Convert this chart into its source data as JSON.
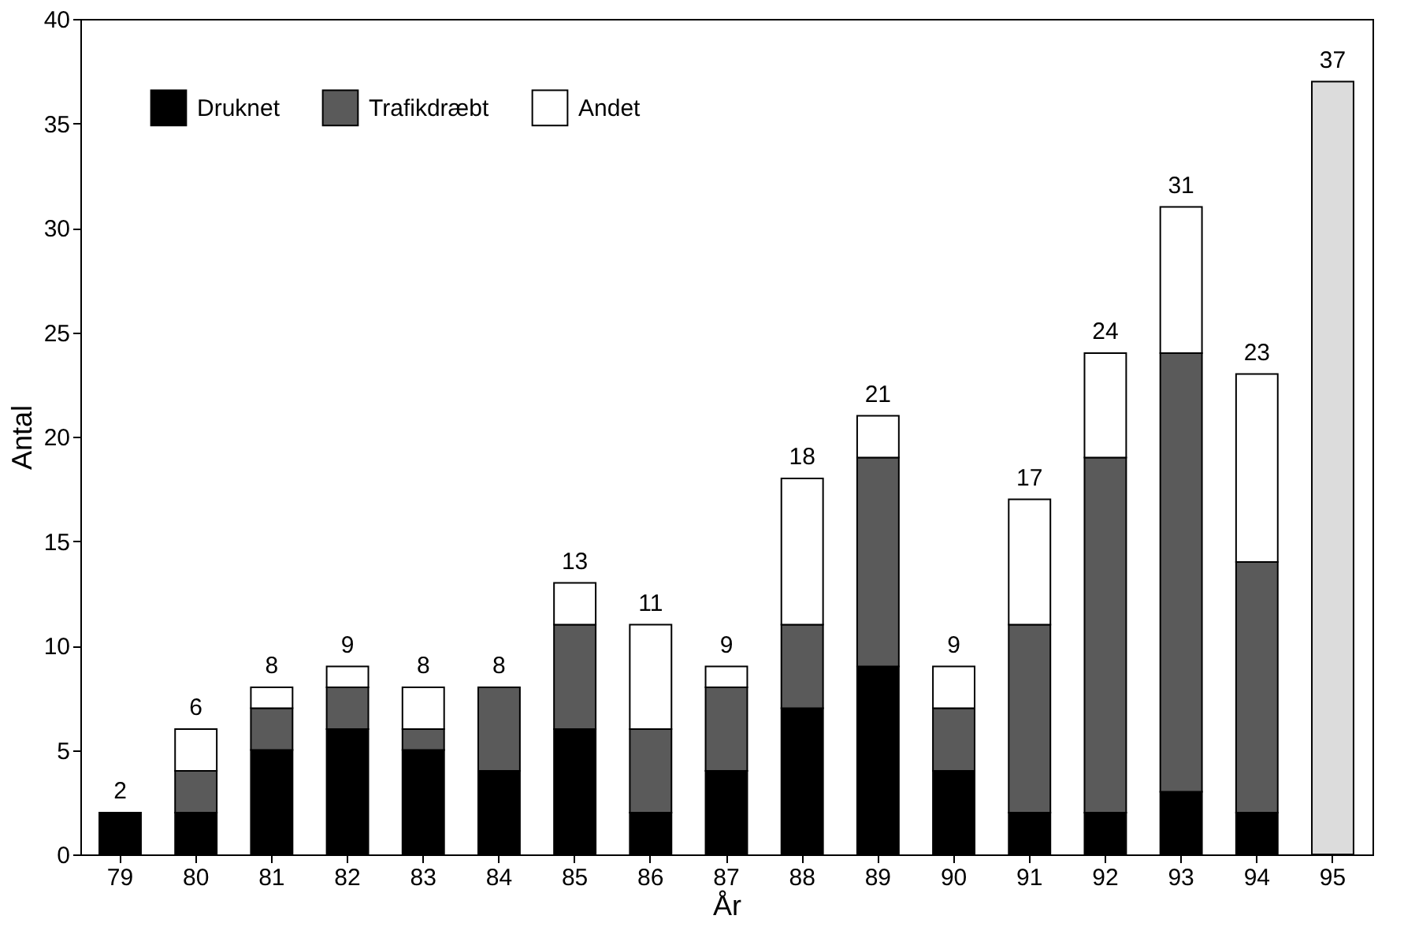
{
  "chart_data": {
    "type": "bar",
    "stacked": true,
    "xlabel": "År",
    "ylabel": "Antal",
    "categories": [
      "79",
      "80",
      "81",
      "82",
      "83",
      "84",
      "85",
      "86",
      "87",
      "88",
      "89",
      "90",
      "91",
      "92",
      "93",
      "94",
      "95"
    ],
    "series": [
      {
        "name": "Druknet",
        "color": "#000000",
        "values": [
          2,
          2,
          5,
          6,
          5,
          4,
          6,
          2,
          4,
          7,
          9,
          4,
          2,
          2,
          3,
          2,
          null
        ]
      },
      {
        "name": "Trafikdræbt",
        "color": "#5a5a5a",
        "values": [
          null,
          2,
          2,
          2,
          1,
          4,
          5,
          4,
          4,
          4,
          10,
          3,
          9,
          17,
          21,
          12,
          null
        ]
      },
      {
        "name": "Andet",
        "color": "#ffffff",
        "values": [
          null,
          2,
          1,
          1,
          2,
          null,
          2,
          5,
          1,
          7,
          2,
          2,
          6,
          5,
          7,
          9,
          null
        ]
      },
      {
        "color": "#dcdcdc",
        "values": [
          null,
          null,
          null,
          null,
          null,
          null,
          null,
          null,
          null,
          null,
          null,
          null,
          null,
          null,
          null,
          null,
          37
        ]
      }
    ],
    "totals": [
      "2",
      "6",
      "8",
      "9",
      "8",
      "8",
      "13",
      "11",
      "9",
      "18",
      "21",
      "9",
      "17",
      "24",
      "31",
      "23",
      "37"
    ],
    "ylim": [
      0,
      40
    ],
    "yticks": [
      0,
      5,
      10,
      15,
      20,
      25,
      30,
      35,
      40
    ],
    "grid": false,
    "legend": "top left"
  }
}
